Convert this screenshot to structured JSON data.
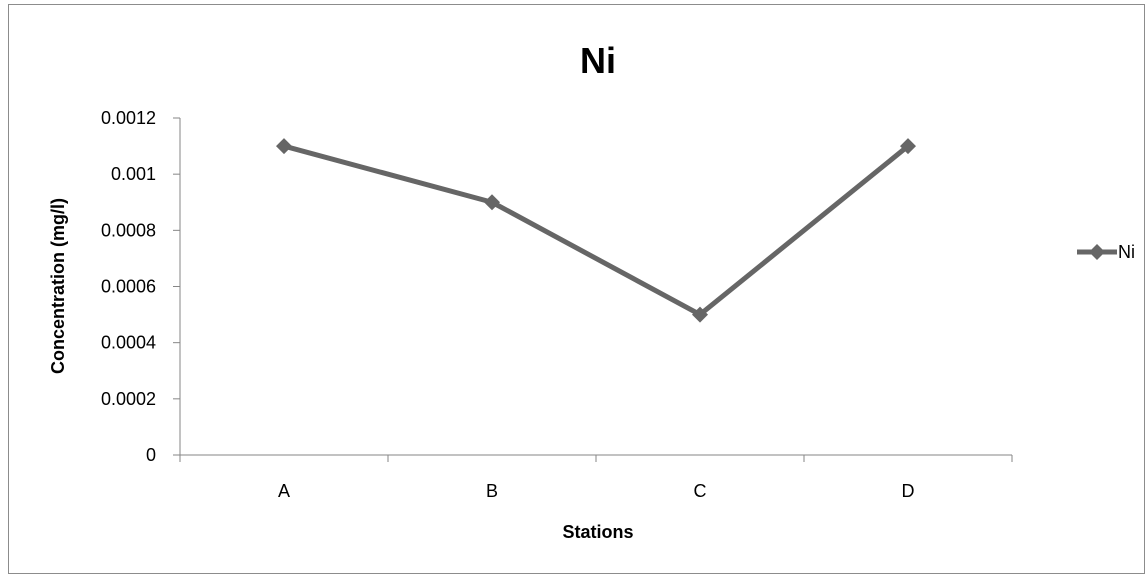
{
  "chart_data": {
    "type": "line",
    "title": "Ni",
    "xlabel": "Stations",
    "ylabel": "Concentration (mg/l)",
    "categories": [
      "A",
      "B",
      "C",
      "D"
    ],
    "series": [
      {
        "name": "Ni",
        "values": [
          0.0011,
          0.0009,
          0.0005,
          0.0011
        ]
      }
    ],
    "ylim": [
      0,
      0.0012
    ],
    "yticks": [
      0,
      0.0002,
      0.0004,
      0.0006,
      0.0008,
      0.001,
      0.0012
    ],
    "ytick_labels": [
      "0",
      "0.0002",
      "0.0004",
      "0.0006",
      "0.0008",
      "0.001",
      "0.0012"
    ],
    "grid": false,
    "legend_position": "right",
    "series_color": "#666666",
    "marker": "diamond"
  }
}
